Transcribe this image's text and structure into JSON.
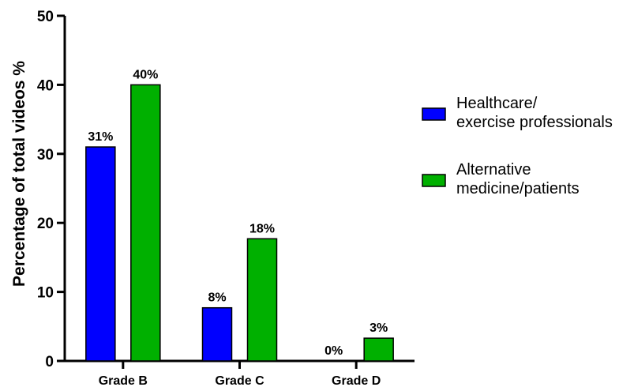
{
  "chart_data": {
    "type": "bar",
    "categories": [
      "Grade B",
      "Grade C",
      "Grade D"
    ],
    "series": [
      {
        "name": "Healthcare/ exercise professionals",
        "name_lines": [
          "Healthcare/",
          "exercise professionals"
        ],
        "color": "#0000ff",
        "values": [
          31,
          7.7,
          0
        ],
        "labels": [
          "31%",
          "8%",
          "0%"
        ]
      },
      {
        "name": "Alternative medicine/patients",
        "name_lines": [
          "Alternative",
          "medicine/patients"
        ],
        "color": "#00b000",
        "values": [
          40,
          17.7,
          3.3
        ],
        "labels": [
          "40%",
          "18%",
          "3%"
        ]
      }
    ],
    "ylabel": "Percentage of total videos %",
    "xlabel": "",
    "ylim": [
      0,
      50
    ],
    "yticks": [
      0,
      10,
      20,
      30,
      40,
      50
    ],
    "grid": false,
    "legend_position": "right"
  }
}
